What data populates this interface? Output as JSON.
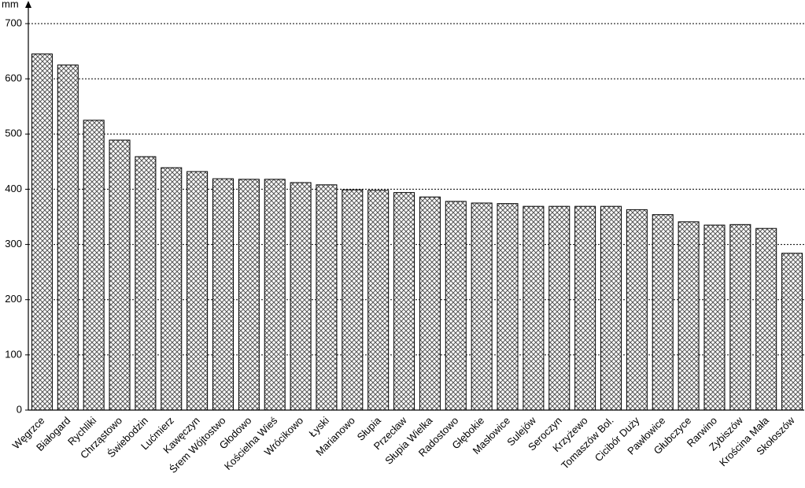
{
  "chart_data": {
    "type": "bar",
    "y_label": "mm",
    "categories": [
      "Węgrzce",
      "Białogard",
      "Rychliki",
      "Chrząstowo",
      "Świebodzin",
      "Lućmierz",
      "Kawęczyn",
      "Śrem Wójtostwo",
      "Głodowo",
      "Kościelna Wieś",
      "Wrócikowo",
      "Łyski",
      "Marianowo",
      "Słupia",
      "Przecław",
      "Słupia Wielka",
      "Radostowo",
      "Głębokie",
      "Masłowice",
      "Sulejów",
      "Seroczyn",
      "Krzyżewo",
      "Tomaszów Bol.",
      "Cicibór Duży",
      "Pawłowice",
      "Głubczyce",
      "Rarwino",
      "Zybiszów",
      "Krościna Mała",
      "Skołoszów"
    ],
    "values": [
      645,
      625,
      525,
      489,
      459,
      439,
      432,
      419,
      418,
      418,
      412,
      408,
      399,
      398,
      394,
      386,
      378,
      375,
      374,
      369,
      369,
      369,
      369,
      363,
      354,
      341,
      335,
      336,
      329,
      284
    ],
    "ylim": [
      0,
      700
    ],
    "yticks": [
      0,
      100,
      200,
      300,
      400,
      500,
      600,
      700
    ],
    "grid": true
  }
}
